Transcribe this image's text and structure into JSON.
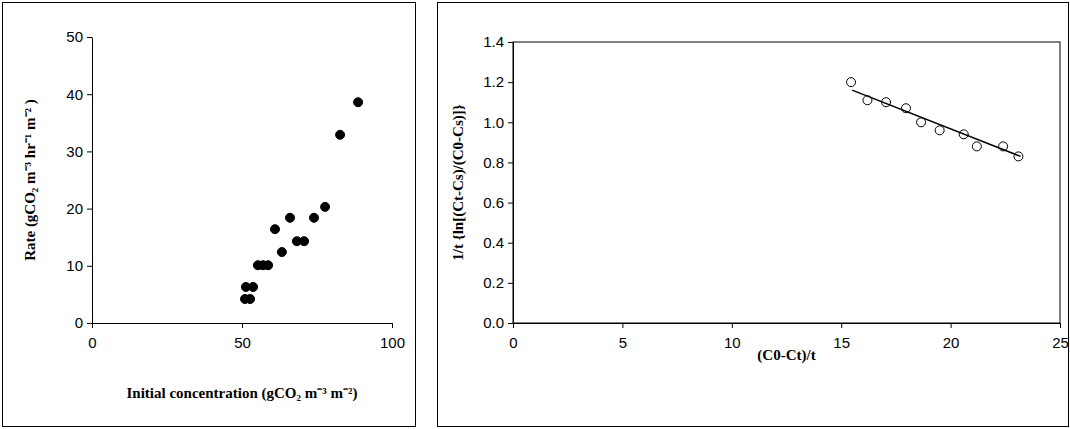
{
  "chart_data": [
    {
      "type": "scatter",
      "x_label": "Initial concentration (gCO₂ m⁻³ m⁻²)",
      "y_label": "Rate (gCO₂ m⁻³ hr⁻¹ m⁻² )",
      "xlim": [
        0,
        100
      ],
      "xticks": [
        0,
        50,
        100
      ],
      "ylim": [
        0,
        50
      ],
      "yticks": [
        0,
        10,
        20,
        30,
        40,
        50
      ],
      "series": [
        {
          "color": "#000000",
          "marker": "filled-circle",
          "x": [
            51.0,
            52.7,
            51.3,
            53.7,
            55.3,
            57.0,
            58.7,
            61.0,
            63.3,
            66.0,
            68.3,
            70.7,
            74.0,
            77.7,
            82.7,
            88.7
          ],
          "values": [
            4.2,
            4.2,
            6.3,
            6.3,
            10.1,
            10.1,
            10.1,
            16.4,
            12.4,
            18.4,
            14.3,
            14.3,
            18.4,
            20.3,
            32.9,
            38.6
          ]
        }
      ]
    },
    {
      "type": "scatter",
      "x_label": "(C0-Ct)/t",
      "y_label": "1/t {ln[(Ct-Cs)/(C0-Cs)]}",
      "xlim": [
        0,
        25
      ],
      "xticks": [
        0,
        5,
        10,
        15,
        20,
        25
      ],
      "ylim": [
        0,
        1.4
      ],
      "yticks": [
        {
          "value": 0,
          "label": "0.0"
        },
        {
          "value": 0.2,
          "label": "0.2"
        },
        {
          "value": 0.4,
          "label": "0.4"
        },
        {
          "value": 0.6,
          "label": "0.6"
        },
        {
          "value": 0.8,
          "label": "0.8"
        },
        {
          "value": 1,
          "label": "1.0"
        },
        {
          "value": 1.2,
          "label": "1.2"
        },
        {
          "value": 1.4,
          "label": "1.4"
        }
      ],
      "series": [
        {
          "color": "#000000",
          "marker": "open-circle",
          "x": [
            15.45,
            16.2,
            17.05,
            17.96,
            18.65,
            19.5,
            20.6,
            21.2,
            22.4,
            23.1
          ],
          "values": [
            1.2,
            1.11,
            1.1,
            1.07,
            1.0,
            0.96,
            0.94,
            0.88,
            0.88,
            0.83
          ]
        },
        {
          "type": "line",
          "color": "#000000",
          "line_style": "solid",
          "x": [
            15.5,
            23.2
          ],
          "values": [
            1.16,
            0.83
          ]
        }
      ]
    }
  ]
}
